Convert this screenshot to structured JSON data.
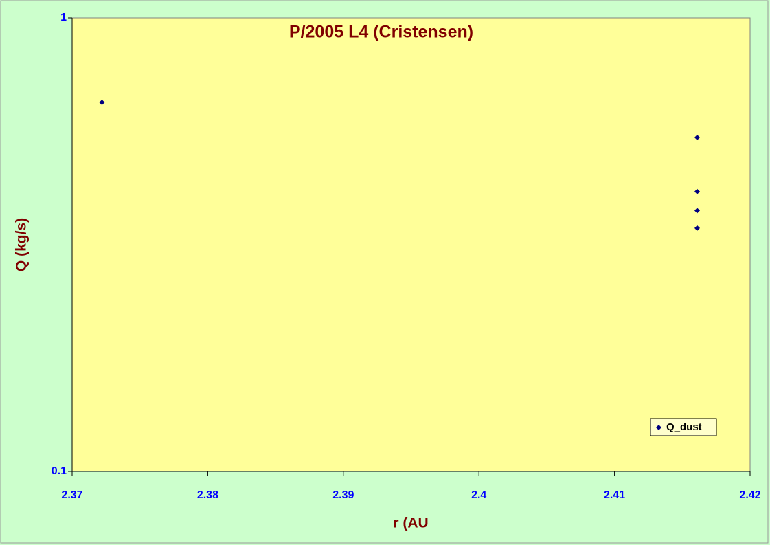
{
  "chart_data": {
    "type": "scatter",
    "title": "P/2005 L4 (Cristensen)",
    "x_label": "r (AU",
    "y_label": "Q (kg/s)",
    "series": [
      {
        "name": "Q_dust",
        "color": "#000080",
        "x": [
          2.3722,
          2.4161,
          2.4161,
          2.4161,
          2.4161
        ],
        "values": [
          0.651,
          0.545,
          0.414,
          0.376,
          0.344
        ]
      }
    ],
    "xlim": [
      2.37,
      2.42
    ],
    "xticks": [
      2.37,
      2.38,
      2.39,
      2.4,
      2.41,
      2.42
    ],
    "ylim": [
      0.1,
      1
    ],
    "yticks": [
      0.1,
      1
    ],
    "y_log": true,
    "legend": "bottom-right"
  }
}
